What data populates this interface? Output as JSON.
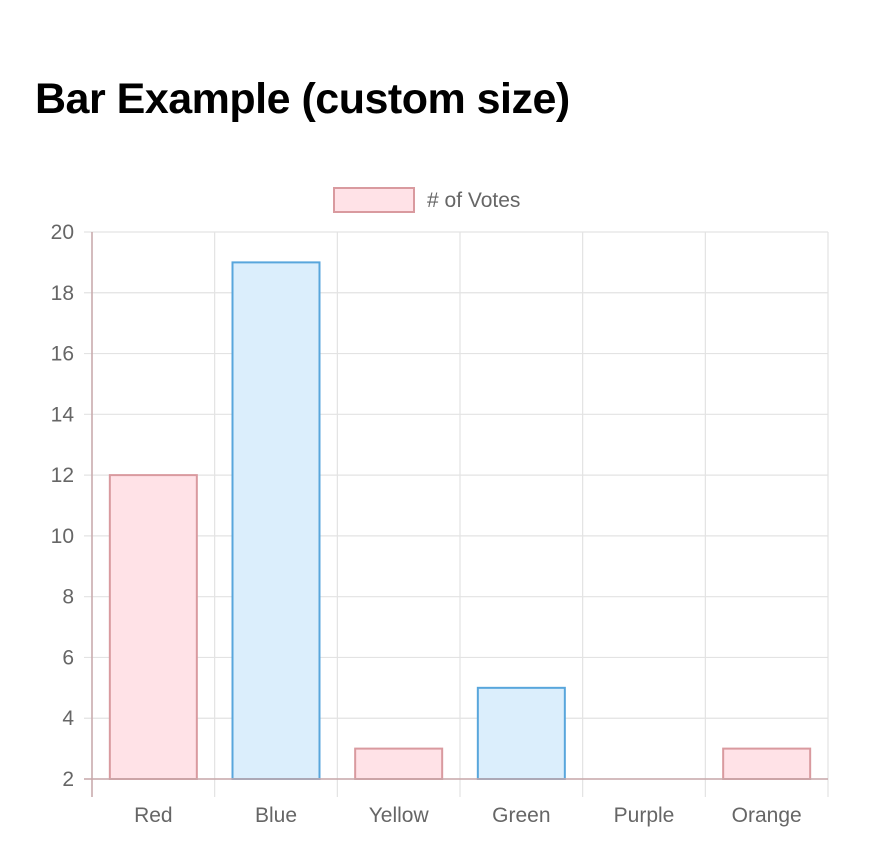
{
  "page": {
    "title": "Bar Example (custom size)"
  },
  "chart_data": {
    "type": "bar",
    "categories": [
      "Red",
      "Blue",
      "Yellow",
      "Green",
      "Purple",
      "Orange"
    ],
    "series": [
      {
        "name": "# of Votes",
        "values": [
          12,
          19,
          3,
          5,
          2,
          3
        ]
      }
    ],
    "bar_styles": [
      {
        "fill": "#ffe2e7",
        "stroke": "#d99a9f"
      },
      {
        "fill": "#dbeefc",
        "stroke": "#58a6dc"
      },
      {
        "fill": "#ffe2e7",
        "stroke": "#d99a9f"
      },
      {
        "fill": "#dbeefc",
        "stroke": "#58a6dc"
      },
      {
        "fill": "#ffe2e7",
        "stroke": "#d99a9f"
      },
      {
        "fill": "#ffe2e7",
        "stroke": "#d99a9f"
      }
    ],
    "legend": {
      "label": "# of Votes",
      "fill": "#ffe2e7",
      "stroke": "#d99a9f",
      "position": "top"
    },
    "ylim": [
      2,
      20
    ],
    "yticks": [
      2,
      4,
      6,
      8,
      10,
      12,
      14,
      16,
      18,
      20
    ],
    "grid": true,
    "colors": {
      "grid": "#e3e3e3",
      "axis": "#c9c9c9",
      "tick_text": "#666666"
    }
  }
}
